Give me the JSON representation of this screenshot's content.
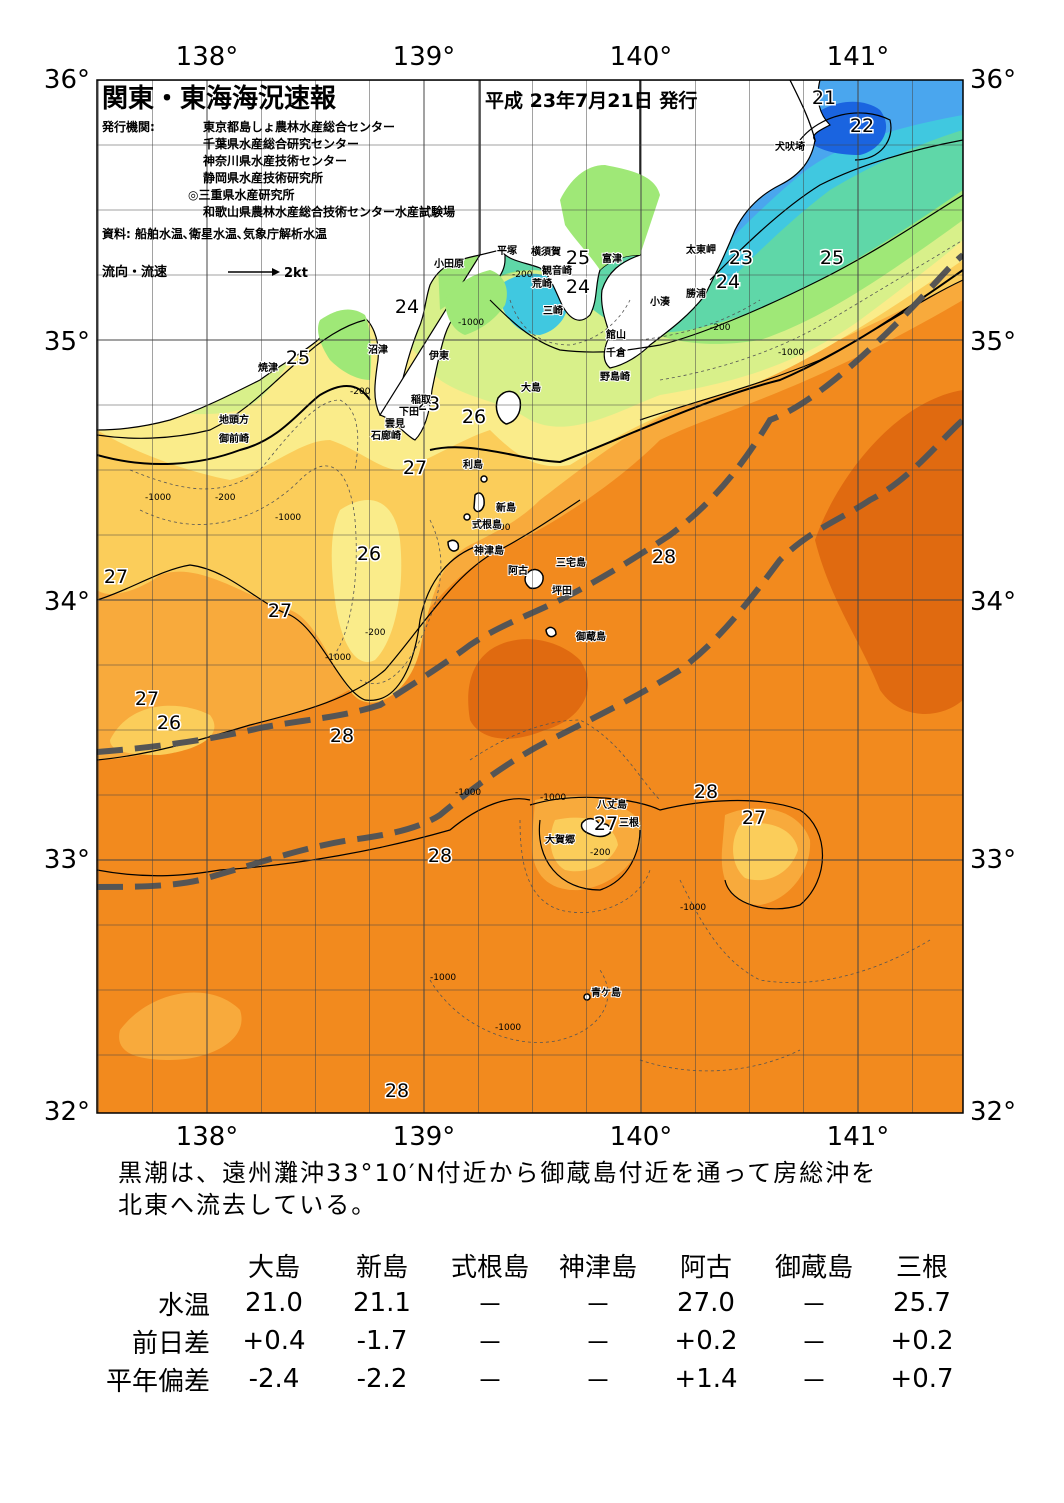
{
  "header": {
    "title": "関東・東海海況速報",
    "issued": "平成 23年7月21日 発行",
    "publisher_label": "発行機関:",
    "publishers": [
      "東京都島しょ農林水産総合センター",
      "千葉県水産総合研究センター",
      "神奈川県水産技術センター",
      "静岡県水産技術研究所",
      "◎三重県水産研究所",
      "和歌山県農林水産総合技術センター水産試験場"
    ],
    "source": "資料: 船舶水温､衛星水温､気象庁解析水温",
    "flow_label": "流向・流速",
    "flow_scale": "2kt"
  },
  "axes": {
    "lon_labels": [
      "138°",
      "139°",
      "140°",
      "141°"
    ],
    "lat_labels": [
      "36°",
      "35°",
      "34°",
      "33°",
      "32°"
    ]
  },
  "temperature_labels": [
    "21",
    "22",
    "25",
    "24",
    "23",
    "24",
    "25",
    "24",
    "25",
    "23",
    "26",
    "27",
    "26",
    "27",
    "27",
    "27",
    "26",
    "28",
    "28",
    "28",
    "27",
    "27",
    "28",
    "28"
  ],
  "depth_labels": [
    "-200",
    "-1000"
  ],
  "place_names": [
    "犬吠埼",
    "太東岬",
    "勝浦",
    "小湊",
    "館山",
    "千倉",
    "野島崎",
    "富津",
    "横須賀",
    "観音崎",
    "荒崎",
    "三崎",
    "平塚",
    "小田原",
    "沼津",
    "伊東",
    "焼津",
    "稲取",
    "下田",
    "雲見",
    "石廊崎",
    "地頭方",
    "御前崎",
    "大島",
    "利島",
    "新島",
    "式根島",
    "神津島",
    "三宅島",
    "阿古",
    "坪田",
    "御蔵島",
    "八丈島",
    "三根",
    "大賀郷",
    "青ケ島"
  ],
  "summary": [
    "黒潮は、遠州灘沖33°10′N付近から御蔵島付近を通って房総沖を",
    "北東へ流去している。"
  ],
  "table": {
    "columns": [
      "大島",
      "新島",
      "式根島",
      "神津島",
      "阿古",
      "御蔵島",
      "三根"
    ],
    "rows": [
      {
        "label": "水温",
        "values": [
          "21.0",
          "21.1",
          "－",
          "－",
          "27.0",
          "－",
          "25.7"
        ]
      },
      {
        "label": "前日差",
        "values": [
          "+0.4",
          "-1.7",
          "－",
          "－",
          "+0.2",
          "－",
          "+0.2"
        ]
      },
      {
        "label": "平年偏差",
        "values": [
          "-2.4",
          "-2.2",
          "－",
          "－",
          "+1.4",
          "－",
          "+0.7"
        ]
      }
    ]
  },
  "colors": {
    "c28": "#f28a1e",
    "c29": "#e06a10",
    "c27": "#f8aa3c",
    "c26": "#fbcd5a",
    "c25": "#faec8a",
    "c24": "#d8f08a",
    "c23": "#9fe877",
    "c22": "#5fd7a8",
    "c21": "#40c8e0",
    "c20": "#4aa6ee",
    "c19": "#1a64e0",
    "land": "#ffffff",
    "kuroshio": "#555555"
  }
}
